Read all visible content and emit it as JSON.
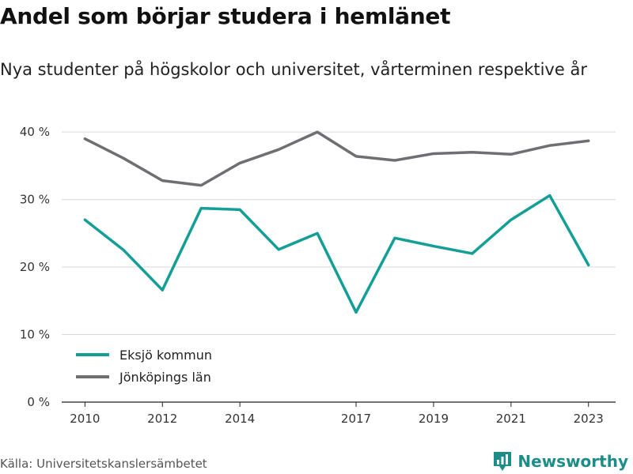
{
  "title": "Andel som börjar studera i hemlänet",
  "subtitle": "Nya studenter på högskolor och universitet, vårterminen respektive år",
  "source": "Källa: Universitetskanslersämbetet",
  "brand": "Newsworthy",
  "colors": {
    "series1": "#139e96",
    "series2": "#6e6e73",
    "grid": "#d9d9d9",
    "brand": "#1d8d88"
  },
  "chart_data": {
    "type": "line",
    "x": [
      2010,
      2011,
      2012,
      2013,
      2014,
      2015,
      2016,
      2017,
      2018,
      2019,
      2020,
      2021,
      2022,
      2023
    ],
    "xticks": [
      2010,
      2012,
      2014,
      2017,
      2019,
      2021,
      2023
    ],
    "xlim": [
      2009.4,
      2023.7
    ],
    "ylim": [
      0,
      42
    ],
    "yticks": [
      0,
      10,
      20,
      30,
      40
    ],
    "ytick_labels": [
      "0 %",
      "10 %",
      "20 %",
      "30 %",
      "40 %"
    ],
    "grid": true,
    "legend": "bottom-left",
    "series": [
      {
        "name": "Eksjö kommun",
        "values": [
          27.0,
          22.5,
          16.6,
          28.7,
          28.5,
          22.6,
          25.0,
          13.3,
          24.3,
          23.1,
          22.0,
          27.0,
          30.6,
          20.3
        ]
      },
      {
        "name": "Jönköpings län",
        "values": [
          39.0,
          36.1,
          32.8,
          32.1,
          35.4,
          37.4,
          40.0,
          36.4,
          35.8,
          36.8,
          37.0,
          36.7,
          38.0,
          38.7
        ]
      }
    ]
  }
}
